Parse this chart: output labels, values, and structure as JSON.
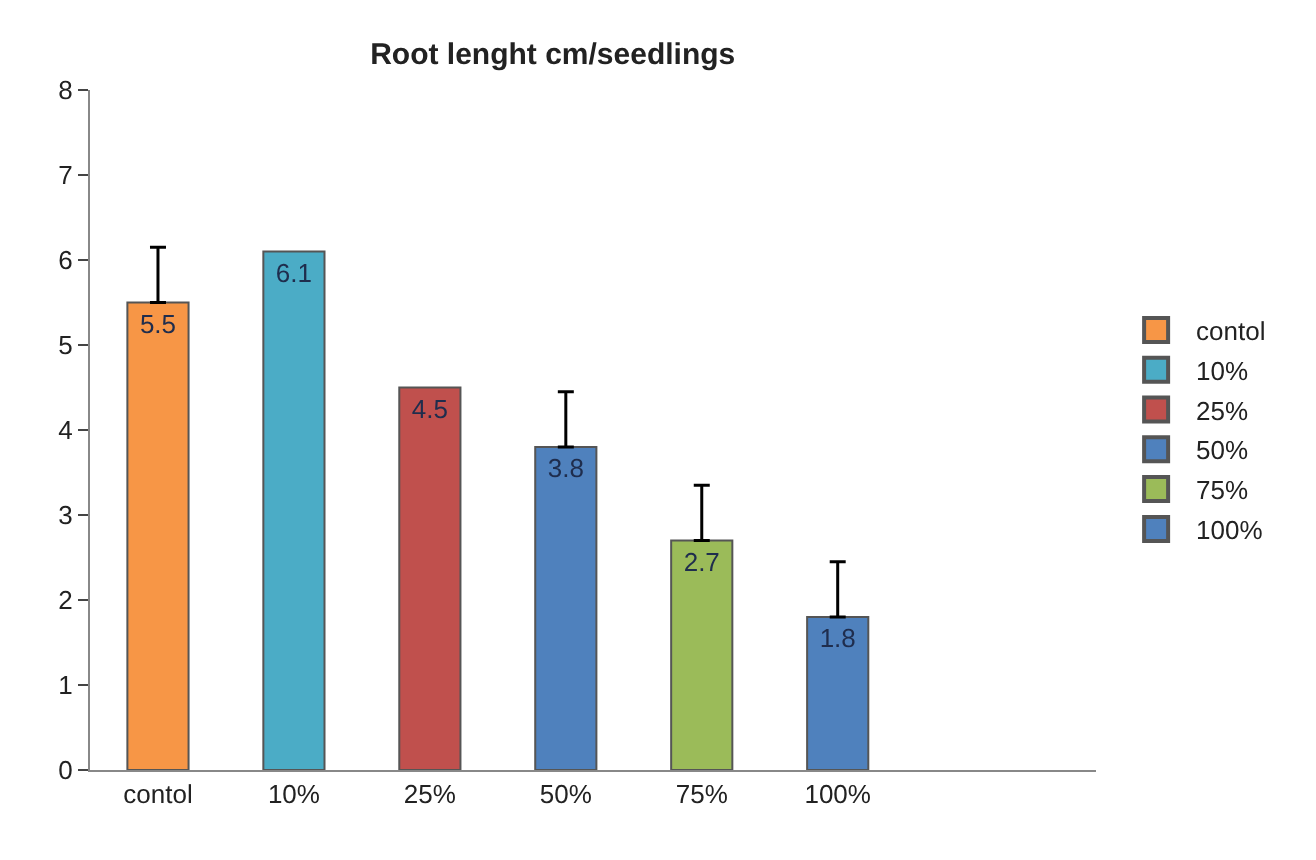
{
  "chart_data": {
    "type": "bar",
    "title": "Root lenght cm/seedlings",
    "categories": [
      "contol",
      "10%",
      "25%",
      "50%",
      "75%",
      "100%"
    ],
    "series": [
      {
        "name": "contol",
        "color": "#f79646",
        "values": [
          5.5,
          null,
          null,
          null,
          null,
          null
        ],
        "errors": [
          [
            5.5,
            6.15
          ],
          null,
          null,
          null,
          null,
          null
        ]
      },
      {
        "name": "10%",
        "color": "#4bacc6",
        "values": [
          null,
          6.1,
          null,
          null,
          null,
          null
        ]
      },
      {
        "name": "25%",
        "color": "#c0504d",
        "values": [
          null,
          null,
          4.5,
          null,
          null,
          null
        ]
      },
      {
        "name": "50%",
        "color": "#4f81bd",
        "values": [
          null,
          null,
          null,
          3.8,
          null,
          null
        ],
        "errors": [
          null,
          null,
          null,
          [
            3.8,
            4.45
          ],
          null,
          null
        ]
      },
      {
        "name": "75%",
        "color": "#9bbb59",
        "values": [
          null,
          null,
          null,
          null,
          2.7,
          null
        ],
        "errors": [
          null,
          null,
          null,
          null,
          [
            2.7,
            3.35
          ],
          null
        ]
      },
      {
        "name": "100%",
        "color": "#4f81bd",
        "values": [
          null,
          null,
          null,
          null,
          null,
          1.8
        ],
        "errors": [
          null,
          null,
          null,
          null,
          null,
          [
            1.8,
            2.45
          ]
        ]
      }
    ],
    "ylim": [
      0,
      8
    ],
    "yticks": [
      0,
      1,
      2,
      3,
      4,
      5,
      6,
      7,
      8
    ],
    "legend": "right",
    "data_labels": true
  }
}
